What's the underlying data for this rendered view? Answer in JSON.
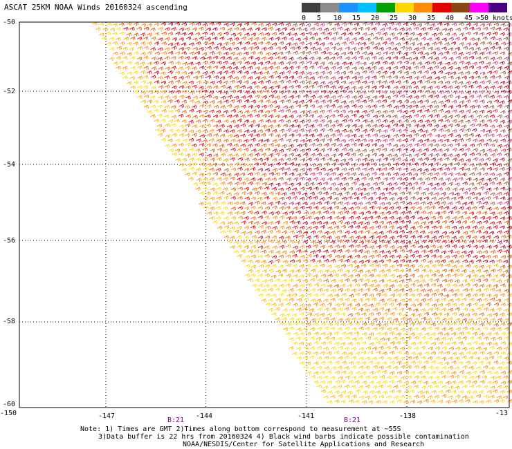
{
  "title": "ASCAT 25KM NOAA Winds 20160324 ascending",
  "legend": {
    "labels": [
      "0",
      "5",
      "10",
      "15",
      "20",
      "25",
      "30",
      "35",
      "40",
      "45",
      ">50 knots"
    ],
    "colors": [
      "#404040",
      "#8c8c8c",
      "#1e90ff",
      "#00bfff",
      "#00a000",
      "#ffd700",
      "#ff8c00",
      "#e60000",
      "#8b4513",
      "#ff00ff",
      "#4b0082"
    ]
  },
  "map": {
    "lat_labels": [
      "-50",
      "-52",
      "-54",
      "-56",
      "-58",
      "-60"
    ],
    "lon_labels": [
      "-150",
      "-147",
      "-144",
      "-141",
      "-138",
      "-13"
    ],
    "time_labels": [
      "B:21",
      "B:21"
    ],
    "time_color": "#800080",
    "barb_colors": [
      "#ffd700",
      "#ffb300",
      "#ff8c00",
      "#e65c00",
      "#e60000",
      "#c0001a",
      "#d6336c",
      "#a0522d",
      "#8b4513"
    ]
  },
  "notes": {
    "line1": "Note: 1) Times are GMT 2)Times along bottom correspond to measurement at ~55S",
    "line2": "3)Data buffer is 22 hrs from 20160324 4) Black wind barbs indicate possible contamination",
    "line3": "NOAA/NESDIS/Center for Satellite Applications and Research"
  }
}
